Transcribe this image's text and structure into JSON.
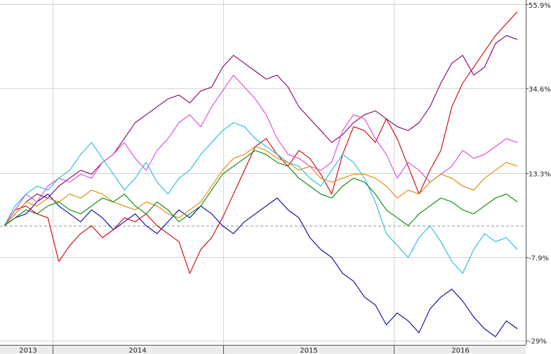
{
  "chart_data": {
    "type": "line",
    "title": "",
    "xlabel": "",
    "ylabel": "",
    "x_ticks": [
      "2013",
      "2014",
      "2015",
      "2016"
    ],
    "y_ticks": [
      "55.9%",
      "34.6%",
      "13.3%",
      "-7.9%",
      "-29%"
    ],
    "y_tick_values": [
      55.9,
      34.6,
      13.3,
      -7.9,
      -29
    ],
    "ylim": [
      -29,
      55.9
    ],
    "baseline": 0,
    "grid": true,
    "x_start": "2012-12",
    "x_end": "2016-08",
    "series": [
      {
        "color": "#0000aa",
        "values": [
          0,
          2,
          3,
          6,
          8,
          5,
          3,
          1,
          4,
          2,
          -1,
          1,
          3,
          0,
          -2,
          1,
          4,
          2,
          5,
          3,
          0,
          -2,
          1,
          3,
          5,
          7,
          4,
          2,
          -3,
          -6,
          -8,
          -12,
          -14,
          -18,
          -20,
          -25,
          -22,
          -24,
          -27,
          -21,
          -18,
          -16,
          -19,
          -23,
          -26,
          -28,
          -24,
          -26
        ]
      },
      {
        "color": "#cc0000",
        "values": [
          0,
          4,
          5,
          3,
          2,
          -9,
          -5,
          -2,
          0,
          -3,
          -1,
          2,
          1,
          3,
          0,
          -2,
          -4,
          -12,
          -6,
          -3,
          2,
          8,
          14,
          20,
          22,
          18,
          15,
          19,
          17,
          13,
          8,
          18,
          25,
          24,
          21,
          27,
          22,
          15,
          8,
          14,
          19,
          30,
          36,
          40,
          44,
          48,
          51,
          54
        ]
      },
      {
        "color": "#880066",
        "values": [
          0,
          3,
          6,
          8,
          7,
          10,
          12,
          14,
          13,
          16,
          18,
          22,
          26,
          28,
          30,
          32,
          33,
          31,
          34,
          35,
          40,
          43,
          41,
          39,
          37,
          38,
          35,
          30,
          27,
          24,
          21,
          23,
          26,
          28,
          29,
          27,
          25,
          24,
          26,
          30,
          36,
          41,
          43,
          38,
          40,
          46,
          48,
          47
        ]
      },
      {
        "color": "#dd44dd",
        "values": [
          0,
          4,
          8,
          6,
          10,
          12,
          11,
          13,
          12,
          16,
          18,
          21,
          17,
          14,
          19,
          22,
          26,
          28,
          25,
          30,
          34,
          38,
          35,
          32,
          28,
          22,
          18,
          17,
          15,
          14,
          16,
          24,
          28,
          27,
          22,
          18,
          12,
          16,
          14,
          11,
          13,
          15,
          19,
          17,
          18,
          20,
          22,
          21
        ]
      },
      {
        "color": "#22bbdd",
        "values": [
          0,
          5,
          8,
          10,
          9,
          12,
          14,
          18,
          21,
          17,
          13,
          9,
          12,
          16,
          11,
          8,
          12,
          14,
          18,
          21,
          24,
          26,
          25,
          22,
          20,
          18,
          16,
          15,
          12,
          10,
          14,
          18,
          16,
          12,
          6,
          -2,
          -5,
          -8,
          -3,
          0,
          -4,
          -9,
          -12,
          -6,
          -2,
          -4,
          -3,
          -6
        ]
      },
      {
        "color": "#dd8800",
        "values": [
          0,
          3,
          6,
          5,
          7,
          6,
          8,
          7,
          9,
          8,
          6,
          5,
          4,
          6,
          5,
          3,
          2,
          4,
          6,
          10,
          14,
          17,
          18,
          20,
          19,
          17,
          16,
          14,
          15,
          12,
          11,
          12,
          13,
          13,
          12,
          10,
          7,
          9,
          8,
          11,
          13,
          12,
          10,
          9,
          12,
          14,
          16,
          15
        ]
      },
      {
        "color": "#008800",
        "values": [
          0,
          2,
          4,
          3,
          5,
          6,
          4,
          3,
          5,
          7,
          6,
          8,
          5,
          3,
          6,
          4,
          1,
          3,
          5,
          9,
          13,
          15,
          17,
          19,
          18,
          16,
          15,
          12,
          10,
          8,
          7,
          10,
          12,
          11,
          8,
          4,
          2,
          0,
          3,
          5,
          7,
          6,
          4,
          3,
          5,
          7,
          8,
          6
        ]
      }
    ]
  }
}
